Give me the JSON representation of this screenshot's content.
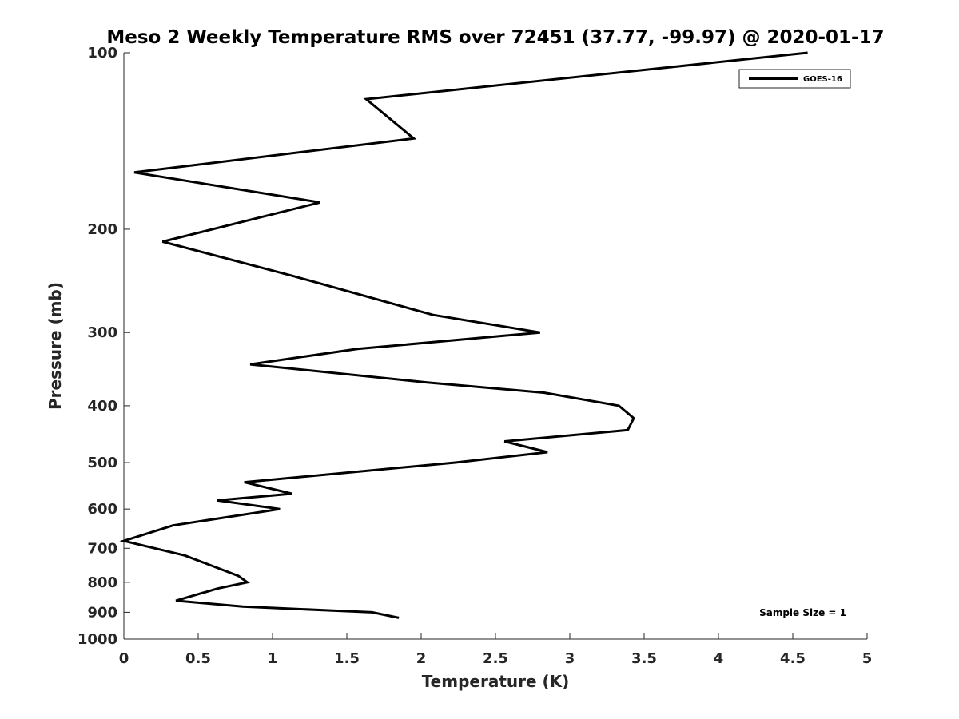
{
  "chart_data": {
    "type": "line",
    "title": "Meso 2 Weekly Temperature RMS over 72451 (37.77, -99.97) @ 2020-01-17",
    "xlabel": "Temperature (K)",
    "ylabel": "Pressure (mb)",
    "xlim": [
      0,
      5
    ],
    "ylim": [
      100,
      1000
    ],
    "y_scale": "log",
    "y_reversed": true,
    "x_ticks": [
      "0",
      "0.5",
      "1",
      "1.5",
      "2",
      "2.5",
      "3",
      "3.5",
      "4",
      "4.5",
      "5"
    ],
    "x_tick_values": [
      0,
      0.5,
      1,
      1.5,
      2,
      2.5,
      3,
      3.5,
      4,
      4.5,
      5
    ],
    "y_ticks": [
      "100",
      "200",
      "300",
      "400",
      "500",
      "600",
      "700",
      "800",
      "900",
      "1000"
    ],
    "y_tick_values": [
      100,
      200,
      300,
      400,
      500,
      600,
      700,
      800,
      900,
      1000
    ],
    "grid": false,
    "legend_position": "top-right",
    "series": [
      {
        "name": "GOES-16",
        "color": "#000000",
        "x": [
          4.6,
          1.63,
          1.95,
          0.07,
          1.32,
          0.26,
          1.13,
          2.08,
          2.8,
          1.57,
          0.85,
          2.04,
          2.83,
          3.33,
          3.43,
          3.39,
          2.56,
          2.85,
          2.23,
          0.81,
          1.13,
          0.63,
          1.05,
          0.33,
          0.0,
          0.41,
          0.77,
          0.83,
          0.63,
          0.35,
          0.8,
          1.67,
          1.85
        ],
        "y": [
          100,
          120,
          140,
          160,
          180,
          210,
          240,
          280,
          300,
          320,
          340,
          365,
          380,
          400,
          420,
          440,
          460,
          480,
          500,
          540,
          565,
          580,
          600,
          640,
          680,
          720,
          780,
          800,
          820,
          860,
          880,
          900,
          920
        ]
      }
    ],
    "annotations": [
      "Sample Size = 1"
    ]
  }
}
